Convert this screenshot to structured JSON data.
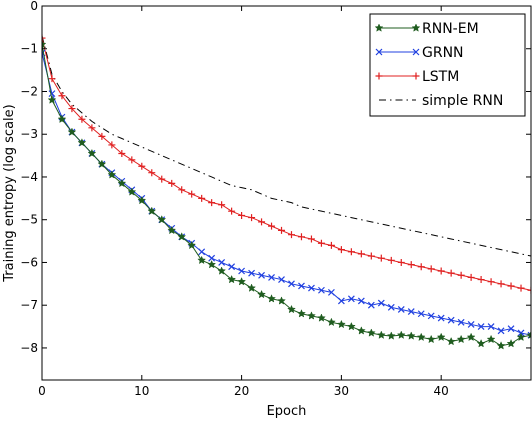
{
  "chart_data": {
    "type": "line",
    "xlabel": "Epoch",
    "ylabel": "Training entropy (log scale)",
    "xlim": [
      0,
      49
    ],
    "ylim": [
      -8.75,
      0
    ],
    "xticks": [
      0,
      10,
      20,
      30,
      40
    ],
    "yticks": [
      0,
      -1,
      -2,
      -3,
      -4,
      -5,
      -6,
      -7,
      -8
    ],
    "grid": false,
    "legend_position": "top-right",
    "x": [
      0,
      1,
      2,
      3,
      4,
      5,
      6,
      7,
      8,
      9,
      10,
      11,
      12,
      13,
      14,
      15,
      16,
      17,
      18,
      19,
      20,
      21,
      22,
      23,
      24,
      25,
      26,
      27,
      28,
      29,
      30,
      31,
      32,
      33,
      34,
      35,
      36,
      37,
      38,
      39,
      40,
      41,
      42,
      43,
      44,
      45,
      46,
      47,
      48,
      49
    ],
    "series": [
      {
        "name": "RNN-EM",
        "color": "#1f5c1f",
        "marker": "star",
        "style": "solid",
        "values": [
          -0.9,
          -2.2,
          -2.65,
          -2.95,
          -3.2,
          -3.45,
          -3.7,
          -3.95,
          -4.15,
          -4.35,
          -4.55,
          -4.8,
          -5.0,
          -5.25,
          -5.4,
          -5.6,
          -5.95,
          -6.05,
          -6.2,
          -6.4,
          -6.45,
          -6.6,
          -6.75,
          -6.85,
          -6.9,
          -7.1,
          -7.2,
          -7.25,
          -7.3,
          -7.4,
          -7.45,
          -7.5,
          -7.6,
          -7.65,
          -7.7,
          -7.72,
          -7.7,
          -7.72,
          -7.75,
          -7.8,
          -7.75,
          -7.85,
          -7.8,
          -7.75,
          -7.9,
          -7.8,
          -7.95,
          -7.9,
          -7.75,
          -7.7
        ]
      },
      {
        "name": "GRNN",
        "color": "#2040e0",
        "marker": "x",
        "style": "solid",
        "values": [
          -1.1,
          -2.05,
          -2.6,
          -2.95,
          -3.2,
          -3.45,
          -3.7,
          -3.9,
          -4.1,
          -4.3,
          -4.5,
          -4.8,
          -5.0,
          -5.2,
          -5.4,
          -5.55,
          -5.75,
          -5.9,
          -6.0,
          -6.1,
          -6.2,
          -6.25,
          -6.3,
          -6.35,
          -6.4,
          -6.5,
          -6.55,
          -6.6,
          -6.65,
          -6.7,
          -6.9,
          -6.85,
          -6.9,
          -7.0,
          -6.95,
          -7.05,
          -7.1,
          -7.15,
          -7.2,
          -7.25,
          -7.3,
          -7.35,
          -7.4,
          -7.45,
          -7.5,
          -7.5,
          -7.6,
          -7.55,
          -7.65,
          -7.7
        ]
      },
      {
        "name": "LSTM",
        "color": "#e02020",
        "marker": "plus",
        "style": "solid",
        "values": [
          -0.75,
          -1.7,
          -2.1,
          -2.4,
          -2.65,
          -2.85,
          -3.05,
          -3.25,
          -3.45,
          -3.6,
          -3.75,
          -3.9,
          -4.05,
          -4.15,
          -4.3,
          -4.4,
          -4.5,
          -4.6,
          -4.65,
          -4.8,
          -4.9,
          -4.95,
          -5.05,
          -5.15,
          -5.25,
          -5.35,
          -5.4,
          -5.45,
          -5.55,
          -5.6,
          -5.7,
          -5.75,
          -5.8,
          -5.85,
          -5.9,
          -5.95,
          -6.0,
          -6.05,
          -6.1,
          -6.15,
          -6.2,
          -6.25,
          -6.3,
          -6.35,
          -6.4,
          -6.45,
          -6.5,
          -6.55,
          -6.6,
          -6.65
        ]
      },
      {
        "name": "simple  RNN",
        "color": "#000000",
        "marker": "none",
        "style": "dashdot",
        "values": [
          -0.7,
          -1.6,
          -2.0,
          -2.3,
          -2.5,
          -2.7,
          -2.85,
          -3.0,
          -3.1,
          -3.2,
          -3.3,
          -3.4,
          -3.5,
          -3.6,
          -3.7,
          -3.8,
          -3.9,
          -4.0,
          -4.1,
          -4.2,
          -4.25,
          -4.3,
          -4.4,
          -4.5,
          -4.55,
          -4.6,
          -4.7,
          -4.75,
          -4.8,
          -4.85,
          -4.9,
          -4.95,
          -5.0,
          -5.05,
          -5.1,
          -5.15,
          -5.2,
          -5.25,
          -5.3,
          -5.35,
          -5.4,
          -5.45,
          -5.5,
          -5.55,
          -5.6,
          -5.65,
          -5.7,
          -5.75,
          -5.8,
          -5.85
        ]
      }
    ]
  }
}
